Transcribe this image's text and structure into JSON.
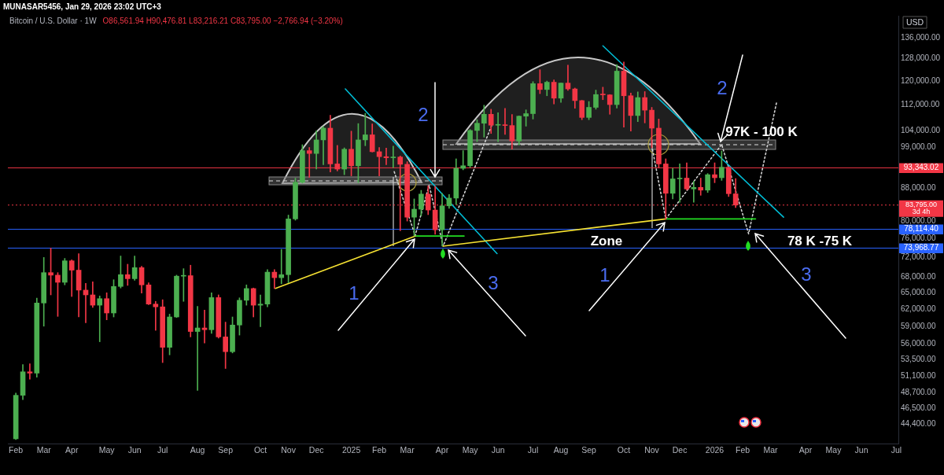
{
  "chart_data": {
    "type": "candlestick",
    "title": "Bitcoin / U.S. Dollar · 1W",
    "subtitle": "O86,561.94 H90,476.81 L83,216.21 C83,795.00 −2,766.94 (−3.20%)",
    "ylabel": "USD",
    "x": [
      "2024-02-05",
      "2024-02-12",
      "2024-02-19",
      "2024-02-26",
      "2024-03-04",
      "2024-03-11",
      "2024-03-18",
      "2024-03-25",
      "2024-04-01",
      "2024-04-08",
      "2024-04-15",
      "2024-04-22",
      "2024-04-29",
      "2024-05-06",
      "2024-05-13",
      "2024-05-20",
      "2024-05-27",
      "2024-06-03",
      "2024-06-10",
      "2024-06-17",
      "2024-06-24",
      "2024-07-01",
      "2024-07-08",
      "2024-07-15",
      "2024-07-22",
      "2024-07-29",
      "2024-08-05",
      "2024-08-12",
      "2024-08-19",
      "2024-08-26",
      "2024-09-02",
      "2024-09-09",
      "2024-09-16",
      "2024-09-23",
      "2024-09-30",
      "2024-10-07",
      "2024-10-14",
      "2024-10-21",
      "2024-10-28",
      "2024-11-04",
      "2024-11-11",
      "2024-11-18",
      "2024-11-25",
      "2024-12-02",
      "2024-12-09",
      "2024-12-16",
      "2024-12-23",
      "2024-12-30",
      "2025-01-06",
      "2025-01-13",
      "2025-01-20",
      "2025-01-27",
      "2025-02-03",
      "2025-02-10",
      "2025-02-17",
      "2025-02-24",
      "2025-03-03",
      "2025-03-10",
      "2025-03-17",
      "2025-03-24",
      "2025-03-31",
      "2025-04-07",
      "2025-04-14",
      "2025-04-21",
      "2025-04-28",
      "2025-05-05",
      "2025-05-12",
      "2025-05-19",
      "2025-05-26",
      "2025-06-02",
      "2025-06-09",
      "2025-06-16",
      "2025-06-23",
      "2025-06-30",
      "2025-07-07",
      "2025-07-14",
      "2025-07-21",
      "2025-07-28",
      "2025-08-04",
      "2025-08-11",
      "2025-08-18",
      "2025-08-25",
      "2025-09-01",
      "2025-09-08",
      "2025-09-15",
      "2025-09-22",
      "2025-09-29",
      "2025-10-06",
      "2025-10-13",
      "2025-10-20",
      "2025-10-27",
      "2025-11-03",
      "2025-11-10",
      "2025-11-17",
      "2025-11-24",
      "2025-12-01",
      "2025-12-08",
      "2025-12-15",
      "2025-12-22",
      "2025-12-29",
      "2026-01-05",
      "2026-01-12",
      "2026-01-19",
      "2026-01-26"
    ],
    "ohlc": [
      [
        42580,
        48600,
        42500,
        48300
      ],
      [
        48300,
        52800,
        47700,
        51700
      ],
      [
        51700,
        52900,
        50600,
        51500
      ],
      [
        51500,
        64000,
        50900,
        63100
      ],
      [
        63100,
        72000,
        59000,
        68900
      ],
      [
        68900,
        73969,
        64600,
        68400
      ],
      [
        68400,
        68900,
        60700,
        67000
      ],
      [
        67000,
        71800,
        66500,
        71300
      ],
      [
        71300,
        71500,
        64300,
        69400
      ],
      [
        69400,
        72800,
        60600,
        65500
      ],
      [
        65500,
        66800,
        59600,
        64600
      ],
      [
        64600,
        67100,
        62300,
        62700
      ],
      [
        62700,
        64400,
        56400,
        63900
      ],
      [
        63900,
        65000,
        60100,
        61300
      ],
      [
        61300,
        67500,
        60600,
        66200
      ],
      [
        66200,
        72300,
        65900,
        68500
      ],
      [
        68500,
        70600,
        66400,
        67700
      ],
      [
        67700,
        72300,
        67400,
        69900
      ],
      [
        69900,
        70200,
        64950,
        66500
      ],
      [
        66500,
        66900,
        62800,
        62900
      ],
      [
        62900,
        63400,
        58300,
        62400
      ],
      [
        62400,
        63700,
        53100,
        55500
      ],
      [
        55500,
        61100,
        54300,
        60600
      ],
      [
        60600,
        68400,
        60500,
        68200
      ],
      [
        68200,
        69700,
        63400,
        68300
      ],
      [
        68300,
        70400,
        57200,
        58100
      ],
      [
        58100,
        62500,
        49000,
        58700
      ],
      [
        58700,
        61800,
        56200,
        58400
      ],
      [
        58400,
        65000,
        57800,
        64100
      ],
      [
        64100,
        64600,
        57000,
        57200
      ],
      [
        57200,
        59700,
        52200,
        54800
      ],
      [
        54800,
        60600,
        54600,
        59200
      ],
      [
        59200,
        64050,
        57500,
        63600
      ],
      [
        63600,
        66500,
        62700,
        65800
      ],
      [
        65800,
        65900,
        60600,
        62700
      ],
      [
        62700,
        64600,
        58900,
        62900
      ],
      [
        62900,
        69500,
        62400,
        69000
      ],
      [
        69000,
        69500,
        65800,
        67900
      ],
      [
        67900,
        73700,
        66700,
        68500
      ],
      [
        68500,
        81400,
        66900,
        80500
      ],
      [
        80500,
        90600,
        80200,
        89500
      ],
      [
        89500,
        99800,
        89300,
        98100
      ],
      [
        98100,
        99000,
        90800,
        97300
      ],
      [
        97300,
        103900,
        93000,
        101200
      ],
      [
        101200,
        105300,
        94200,
        104700
      ],
      [
        104700,
        108700,
        92200,
        94400
      ],
      [
        94400,
        99600,
        92500,
        93000
      ],
      [
        93000,
        98900,
        91500,
        98500
      ],
      [
        98500,
        103800,
        91200,
        93900
      ],
      [
        93900,
        106100,
        89400,
        101200
      ],
      [
        101200,
        109300,
        99500,
        102700
      ],
      [
        102700,
        106000,
        97700,
        97800
      ],
      [
        97800,
        99000,
        91200,
        96400
      ],
      [
        96400,
        98800,
        94200,
        96100
      ],
      [
        96100,
        99400,
        93400,
        96300
      ],
      [
        96300,
        96600,
        77800,
        94300
      ],
      [
        94300,
        95000,
        80000,
        80900
      ],
      [
        80900,
        85300,
        76600,
        82800
      ],
      [
        82800,
        87450,
        81200,
        86500
      ],
      [
        86500,
        88600,
        81500,
        82600
      ],
      [
        82600,
        88500,
        77000,
        78000
      ],
      [
        78000,
        86700,
        74400,
        83600
      ],
      [
        83600,
        86400,
        83000,
        85500
      ],
      [
        85500,
        95800,
        83900,
        93200
      ],
      [
        93200,
        98100,
        92800,
        93900
      ],
      [
        93900,
        104300,
        93400,
        104000
      ],
      [
        104000,
        107300,
        100700,
        106200
      ],
      [
        106200,
        111900,
        102000,
        109000
      ],
      [
        109000,
        110600,
        103100,
        105600
      ],
      [
        105600,
        109500,
        100700,
        105700
      ],
      [
        105700,
        110900,
        102800,
        105500
      ],
      [
        105500,
        108900,
        98500,
        100900
      ],
      [
        100900,
        108500,
        99700,
        108400
      ],
      [
        108400,
        110400,
        105300,
        109200
      ],
      [
        109200,
        119800,
        107500,
        119100
      ],
      [
        119100,
        124000,
        115700,
        117100
      ],
      [
        117100,
        120000,
        115000,
        119600
      ],
      [
        119600,
        120400,
        112300,
        114200
      ],
      [
        114200,
        119300,
        112800,
        119300
      ],
      [
        119300,
        125700,
        116800,
        117300
      ],
      [
        117300,
        117600,
        110900,
        113400
      ],
      [
        113400,
        113500,
        107300,
        108000
      ],
      [
        108000,
        113100,
        107300,
        111200
      ],
      [
        111200,
        116900,
        110600,
        115400
      ],
      [
        115400,
        117900,
        113700,
        115300
      ],
      [
        115300,
        115400,
        109000,
        112100
      ],
      [
        112100,
        125900,
        111000,
        123500
      ],
      [
        123500,
        126800,
        105000,
        115000
      ],
      [
        115000,
        115900,
        103800,
        108600
      ],
      [
        108600,
        116300,
        106700,
        114400
      ],
      [
        114400,
        116400,
        106300,
        110300
      ],
      [
        110300,
        111200,
        98900,
        104700
      ],
      [
        104700,
        107500,
        93300,
        94400
      ],
      [
        94400,
        95800,
        80400,
        86700
      ],
      [
        86700,
        93200,
        85300,
        90400
      ],
      [
        90400,
        94400,
        84500,
        90600
      ],
      [
        90600,
        94700,
        87500,
        87800
      ],
      [
        87800,
        89800,
        84500,
        88200
      ],
      [
        88200,
        90600,
        86200,
        87500
      ],
      [
        87500,
        91800,
        86900,
        91500
      ],
      [
        91500,
        94700,
        89400,
        90700
      ],
      [
        90700,
        98000,
        90000,
        93500
      ],
      [
        93500,
        93600,
        85900,
        86600
      ],
      [
        86561.94,
        90476.81,
        83216.21,
        83795.0
      ]
    ],
    "colors": [
      "#4caf50",
      "#4caf50",
      "#f23645",
      "#4caf50",
      "#4caf50",
      "#f23645",
      "#f23645",
      "#4caf50",
      "#f23645",
      "#f23645",
      "#f23645",
      "#f23645",
      "#4caf50",
      "#f23645",
      "#4caf50",
      "#4caf50",
      "#f23645",
      "#4caf50",
      "#f23645",
      "#f23645",
      "#f23645",
      "#f23645",
      "#4caf50",
      "#4caf50",
      "#4caf50",
      "#f23645",
      "#4caf50",
      "#f23645",
      "#4caf50",
      "#f23645",
      "#f23645",
      "#4caf50",
      "#4caf50",
      "#4caf50",
      "#f23645",
      "#4caf50",
      "#4caf50",
      "#f23645",
      "#4caf50",
      "#4caf50",
      "#4caf50",
      "#4caf50",
      "#f23645",
      "#4caf50",
      "#4caf50",
      "#f23645",
      "#f23645",
      "#4caf50",
      "#f23645",
      "#4caf50",
      "#4caf50",
      "#f23645",
      "#f23645",
      "#f23645",
      "#4caf50",
      "#f23645",
      "#f23645",
      "#4caf50",
      "#4caf50",
      "#f23645",
      "#f23645",
      "#4caf50",
      "#4caf50",
      "#4caf50",
      "#4caf50",
      "#4caf50",
      "#4caf50",
      "#4caf50",
      "#f23645",
      "#4caf50",
      "#f23645",
      "#f23645",
      "#4caf50",
      "#4caf50",
      "#4caf50",
      "#f23645",
      "#4caf50",
      "#f23645",
      "#4caf50",
      "#f23645",
      "#f23645",
      "#f23645",
      "#4caf50",
      "#4caf50",
      "#f23645",
      "#f23645",
      "#4caf50",
      "#f23645",
      "#f23645",
      "#4caf50",
      "#f23645",
      "#f23645",
      "#f23645",
      "#f23645",
      "#4caf50",
      "#4caf50",
      "#f23645",
      "#4caf50",
      "#f23645",
      "#4caf50",
      "#f23645",
      "#4caf50",
      "#f23645",
      "#f23645"
    ],
    "series": [
      {
        "type": "line",
        "x": [
          "2024-10-22",
          "2025-03-11"
        ],
        "values": [
          65840,
          76600
        ],
        "color": "#f5e132"
      },
      {
        "type": "line",
        "x": [
          "2025-04-08",
          "2025-11-17"
        ],
        "values": [
          74400,
          80500
        ],
        "color": "#f5e132"
      },
      {
        "type": "line",
        "x": [
          "2024-12-31",
          "2025-06-01"
        ],
        "values": [
          117300,
          72800
        ],
        "color": "#00bcd4"
      },
      {
        "type": "line",
        "x": [
          "2025-09-15",
          "2026-03-15"
        ],
        "values": [
          132900,
          80900
        ],
        "color": "#00bcd4"
      },
      {
        "type": "line",
        "x": [
          "2025-03-11",
          "2025-04-29"
        ],
        "values": [
          76600,
          76600
        ],
        "color": "#22dd22"
      },
      {
        "type": "line",
        "x": [
          "2025-11-17",
          "2026-02-15"
        ],
        "values": [
          80500,
          80500
        ],
        "color": "#22dd22"
      },
      {
        "type": "line",
        "x": [
          "2025-02-18",
          "2025-03-11",
          "2025-03-25",
          "2025-04-08",
          "2025-05-27"
        ],
        "values": [
          92300,
          76700,
          88800,
          74400,
          105800
        ],
        "color": "#d0d0d0",
        "line_style": "dotted"
      },
      {
        "type": "line",
        "x": [
          "2025-11-03",
          "2025-11-17",
          "2026-01-12",
          "2026-02-08",
          "2026-03-08"
        ],
        "values": [
          99500,
          80500,
          99900,
          77100,
          112800
        ],
        "color": "#d0d0d0",
        "line_style": "dotted"
      }
    ],
    "marker": "none",
    "log": true,
    "xlim": [
      "2024-01-28",
      "2026-07-08"
    ],
    "xticks": [
      {
        "value": "2024-02-05",
        "label": "Feb"
      },
      {
        "value": "2024-03-04",
        "label": "Mar"
      },
      {
        "value": "2024-04-01",
        "label": "Apr"
      },
      {
        "value": "2024-05-06",
        "label": "May"
      },
      {
        "value": "2024-06-03",
        "label": "Jun"
      },
      {
        "value": "2024-07-01",
        "label": "Jul"
      },
      {
        "value": "2024-08-05",
        "label": "Aug"
      },
      {
        "value": "2024-09-02",
        "label": "Sep"
      },
      {
        "value": "2024-10-07",
        "label": "Oct"
      },
      {
        "value": "2024-11-04",
        "label": "Nov"
      },
      {
        "value": "2024-12-02",
        "label": "Dec"
      },
      {
        "value": "2025-01-06",
        "label": "2025"
      },
      {
        "value": "2025-02-03",
        "label": "Feb"
      },
      {
        "value": "2025-03-03",
        "label": "Mar"
      },
      {
        "value": "2025-04-07",
        "label": "Apr"
      },
      {
        "value": "2025-05-05",
        "label": "May"
      },
      {
        "value": "2025-06-02",
        "label": "Jun"
      },
      {
        "value": "2025-07-07",
        "label": "Jul"
      },
      {
        "value": "2025-08-04",
        "label": "Aug"
      },
      {
        "value": "2025-09-01",
        "label": "Sep"
      },
      {
        "value": "2025-10-06",
        "label": "Oct"
      },
      {
        "value": "2025-11-03",
        "label": "Nov"
      },
      {
        "value": "2025-12-01",
        "label": "Dec"
      },
      {
        "value": "2026-01-05",
        "label": "2026"
      },
      {
        "value": "2026-02-02",
        "label": "Feb"
      },
      {
        "value": "2026-03-02",
        "label": "Mar"
      },
      {
        "value": "2026-04-06",
        "label": "Apr"
      },
      {
        "value": "2026-05-04",
        "label": "May"
      },
      {
        "value": "2026-06-01",
        "label": "Jun"
      },
      {
        "value": "2026-07-06",
        "label": "Jul"
      }
    ],
    "ylim": [
      42000,
      145000
    ],
    "yticks": [
      {
        "value": 44400,
        "label": "44,400.00"
      },
      {
        "value": 46500,
        "label": "46,500.00"
      },
      {
        "value": 48700,
        "label": "48,700.00"
      },
      {
        "value": 51100,
        "label": "51,100.00"
      },
      {
        "value": 53500,
        "label": "53,500.00"
      },
      {
        "value": 56000,
        "label": "56,000.00"
      },
      {
        "value": 59000,
        "label": "59,000.00"
      },
      {
        "value": 62000,
        "label": "62,000.00"
      },
      {
        "value": 65000,
        "label": "65,000.00"
      },
      {
        "value": 68000,
        "label": "68,000.00"
      },
      {
        "value": 72000,
        "label": "72,000.00"
      },
      {
        "value": 76000,
        "label": "76,000.00"
      },
      {
        "value": 80000,
        "label": "80,000.00"
      },
      {
        "value": 88000,
        "label": "88,000.00"
      },
      {
        "value": 99000,
        "label": "99,000.00"
      },
      {
        "value": 104000,
        "label": "104,000.00"
      },
      {
        "value": 112000,
        "label": "112,000.00"
      },
      {
        "value": 120000,
        "label": "120,000.00"
      },
      {
        "value": 128000,
        "label": "128,000.00"
      },
      {
        "value": 136000,
        "label": "136,000.00"
      }
    ],
    "ref_lines": [
      {
        "axis": "y",
        "value": 93343.02,
        "label": "93,343.02",
        "color": "#f23645"
      },
      {
        "axis": "y",
        "value": 83795.0,
        "label": "83,795.00\n3d 4h",
        "color": "#f23645",
        "line_style": "dotted"
      },
      {
        "axis": "y",
        "value": 78114.4,
        "label": "78,114.40",
        "color": "#2962ff"
      },
      {
        "axis": "y",
        "value": 73968.77,
        "label": "73,968.77",
        "color": "#2962ff"
      }
    ],
    "annotations": [
      "MUNASAR5456, Jan 29, 2026 23:02 UTC+3",
      "1",
      "2",
      "3",
      "1",
      "2",
      "3",
      "Zone",
      "97K - 100 K",
      "78 K -75 K"
    ]
  }
}
